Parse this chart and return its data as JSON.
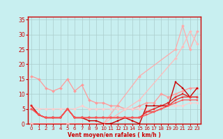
{
  "xlabel": "Vent moyen/en rafales ( km/h )",
  "xlim": [
    -0.5,
    23.5
  ],
  "ylim": [
    0,
    36
  ],
  "yticks": [
    0,
    5,
    10,
    15,
    20,
    25,
    30,
    35
  ],
  "xticks": [
    0,
    1,
    2,
    3,
    4,
    5,
    6,
    7,
    8,
    9,
    10,
    11,
    12,
    13,
    14,
    15,
    16,
    17,
    18,
    19,
    20,
    21,
    22,
    23
  ],
  "bg_color": "#c8eff0",
  "grid_color": "#aacccc",
  "series": [
    {
      "x": [
        0,
        5,
        10,
        15,
        20,
        21,
        22,
        23
      ],
      "y": [
        0,
        0,
        0,
        16,
        25,
        33,
        25,
        31
      ],
      "color": "#ffaaaa",
      "lw": 0.9,
      "marker": "D",
      "ms": 2.0
    },
    {
      "x": [
        0,
        5,
        10,
        15,
        20,
        21,
        22,
        23
      ],
      "y": [
        0,
        0,
        0,
        8,
        22,
        26,
        31,
        27
      ],
      "color": "#ffbbbb",
      "lw": 0.9,
      "marker": "D",
      "ms": 2.0
    },
    {
      "x": [
        0,
        1,
        2,
        3,
        4,
        5,
        6,
        7,
        8,
        9,
        10,
        11,
        12,
        13,
        14,
        15,
        16,
        17,
        18,
        19,
        20,
        21,
        22,
        23
      ],
      "y": [
        16,
        15,
        12,
        11,
        12,
        15,
        11,
        13,
        8,
        7,
        7,
        6,
        6,
        5,
        5,
        6,
        7,
        7,
        10,
        9,
        10,
        11,
        12,
        12
      ],
      "color": "#ff9999",
      "lw": 0.9,
      "marker": "D",
      "ms": 2.0
    },
    {
      "x": [
        0,
        1,
        2,
        3,
        4,
        5,
        6,
        7,
        8,
        9,
        10,
        11,
        12,
        13,
        14,
        15,
        16,
        17,
        18,
        19,
        20,
        21,
        22,
        23
      ],
      "y": [
        6,
        5,
        5,
        5,
        5,
        5,
        5,
        6,
        5,
        5,
        5,
        5,
        5,
        5,
        5,
        5,
        5,
        5,
        6,
        6,
        6,
        6,
        7,
        7
      ],
      "color": "#ffcccc",
      "lw": 0.9,
      "marker": "D",
      "ms": 2.0
    },
    {
      "x": [
        0,
        1,
        2,
        3,
        4,
        5,
        6,
        7,
        8,
        9,
        10,
        11,
        12,
        13,
        14,
        15,
        16,
        17,
        18,
        19,
        20,
        21,
        22,
        23
      ],
      "y": [
        6,
        3,
        2,
        2,
        2,
        5,
        2,
        2,
        1,
        1,
        0,
        0,
        1,
        2,
        1,
        0,
        6,
        6,
        6,
        6,
        14,
        12,
        9,
        12
      ],
      "color": "#cc0000",
      "lw": 1.0,
      "marker": "s",
      "ms": 2.0
    },
    {
      "x": [
        0,
        1,
        2,
        3,
        4,
        5,
        6,
        7,
        8,
        9,
        10,
        11,
        12,
        13,
        14,
        15,
        16,
        17,
        18,
        19,
        20,
        21,
        22,
        23
      ],
      "y": [
        6,
        3,
        2,
        2,
        2,
        5,
        2,
        2,
        2,
        2,
        2,
        2,
        2,
        2,
        2,
        2,
        4,
        5,
        6,
        7,
        9,
        10,
        9,
        9
      ],
      "color": "#dd2222",
      "lw": 1.0,
      "marker": "s",
      "ms": 2.0
    },
    {
      "x": [
        0,
        1,
        2,
        3,
        4,
        5,
        6,
        7,
        8,
        9,
        10,
        11,
        12,
        13,
        14,
        15,
        16,
        17,
        18,
        19,
        20,
        21,
        22,
        23
      ],
      "y": [
        5,
        3,
        2,
        2,
        2,
        5,
        2,
        2,
        2,
        2,
        2,
        2,
        2,
        2,
        2,
        2,
        4,
        4,
        5,
        6,
        8,
        9,
        9,
        9
      ],
      "color": "#ee3333",
      "lw": 1.0,
      "marker": "s",
      "ms": 2.0
    },
    {
      "x": [
        0,
        1,
        2,
        3,
        4,
        5,
        6,
        7,
        8,
        9,
        10,
        11,
        12,
        13,
        14,
        15,
        16,
        17,
        18,
        19,
        20,
        21,
        22,
        23
      ],
      "y": [
        5,
        3,
        2,
        2,
        2,
        5,
        2,
        2,
        2,
        2,
        2,
        2,
        2,
        2,
        2,
        2,
        3,
        4,
        5,
        6,
        7,
        8,
        8,
        8
      ],
      "color": "#ff5555",
      "lw": 0.9,
      "marker": "s",
      "ms": 2.0
    }
  ],
  "wind_arrows_x": [
    0,
    1,
    2,
    3,
    4,
    5,
    6,
    7,
    8,
    9,
    12,
    13,
    15,
    16,
    17,
    18,
    19,
    20,
    21,
    22,
    23
  ],
  "wind_angles": [
    225,
    225,
    225,
    270,
    270,
    315,
    315,
    225,
    225,
    270,
    225,
    225,
    270,
    225,
    225,
    225,
    225,
    225,
    225,
    225,
    225
  ]
}
